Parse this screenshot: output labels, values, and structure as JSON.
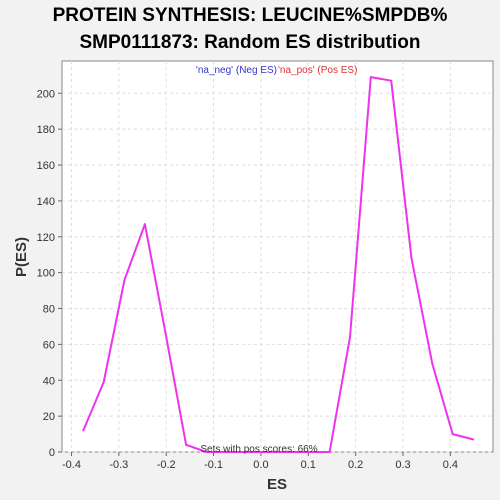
{
  "chart_data": {
    "type": "line",
    "title_lines": [
      "PROTEIN SYNTHESIS: LEUCINE%SMPDB%",
      "SMP0111873: Random ES distribution"
    ],
    "xlabel": "ES",
    "ylabel": "P(ES)",
    "xlim": [
      -0.42,
      0.49
    ],
    "ylim": [
      0,
      218
    ],
    "x_ticks": [
      -0.4,
      -0.3,
      -0.2,
      -0.1,
      0.0,
      0.1,
      0.2,
      0.3,
      0.4
    ],
    "x_tick_labels": [
      "-0.4",
      "-0.3",
      "-0.2",
      "-0.1",
      "0.0",
      "0.1",
      "0.2",
      "0.3",
      "0.4"
    ],
    "y_ticks": [
      0,
      20,
      40,
      60,
      80,
      100,
      120,
      140,
      160,
      180,
      200
    ],
    "y_tick_labels": [
      "0",
      "20",
      "40",
      "60",
      "80",
      "100",
      "120",
      "140",
      "160",
      "180",
      "200"
    ],
    "grid": true,
    "legend": [
      {
        "text": "'na_neg' (Neg ES)",
        "color": "#3333cc"
      },
      {
        "text": "'na_pos' (Pos ES)",
        "color": "#dd3333"
      }
    ],
    "legend_placement": "top-center",
    "annotation": "Sets with pos scores: 66%",
    "series": [
      {
        "color": "#ee33ee",
        "x": [
          -0.375,
          -0.332,
          -0.288,
          -0.245,
          -0.202,
          -0.158,
          -0.115,
          -0.072,
          -0.028,
          0.015,
          0.058,
          0.102,
          0.145,
          0.188,
          0.232,
          0.275,
          0.318,
          0.362,
          0.405,
          0.448
        ],
        "y": [
          12,
          39,
          96,
          127,
          67,
          4,
          0,
          0,
          0,
          0,
          0,
          0,
          0,
          64,
          209,
          207,
          108,
          49,
          10,
          7
        ]
      }
    ]
  }
}
